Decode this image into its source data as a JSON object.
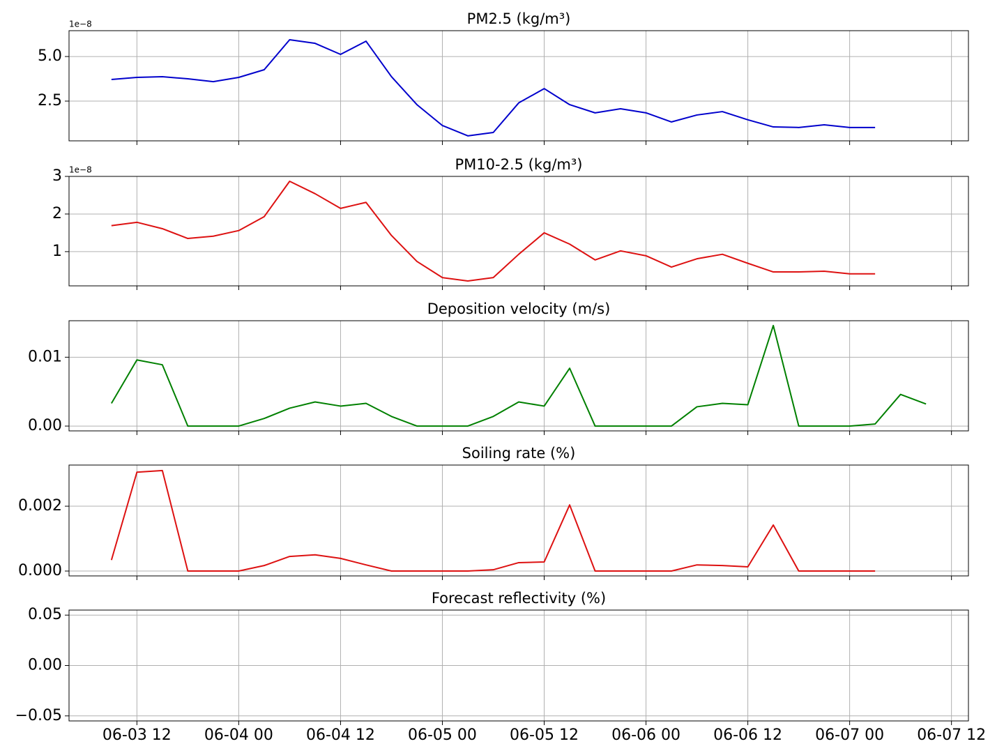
{
  "chart_data": [
    {
      "type": "line",
      "title": "PM2.5 (kg/m³)",
      "offset_text": "1e−8",
      "x": [
        "06-03 09",
        "06-03 12",
        "06-03 15",
        "06-03 18",
        "06-03 21",
        "06-04 00",
        "06-04 03",
        "06-04 06",
        "06-04 09",
        "06-04 12",
        "06-04 15",
        "06-04 18",
        "06-04 21",
        "06-05 00",
        "06-05 03",
        "06-05 06",
        "06-05 09",
        "06-05 12",
        "06-05 15",
        "06-05 18",
        "06-05 21",
        "06-06 00",
        "06-06 03",
        "06-06 06",
        "06-06 09",
        "06-06 12",
        "06-06 15",
        "06-06 18",
        "06-06 21",
        "06-07 00",
        "06-07 03"
      ],
      "series": [
        {
          "color": "#0000cc",
          "values": [
            3.71,
            3.83,
            3.87,
            3.75,
            3.59,
            3.83,
            4.26,
            5.94,
            5.74,
            5.12,
            5.86,
            3.87,
            2.3,
            1.13,
            0.55,
            0.74,
            2.4,
            3.2,
            2.3,
            1.84,
            2.07,
            1.84,
            1.33,
            1.72,
            1.91,
            1.45,
            1.05,
            1.02,
            1.17,
            1.02,
            1.02
          ]
        }
      ],
      "xlim": [
        "06-03 04",
        "06-07 14"
      ],
      "ylim": [
        0.27,
        6.45
      ],
      "yticks": [
        2.5,
        {
          "value": 5,
          "label": "5.0"
        }
      ],
      "grid": true
    },
    {
      "type": "line",
      "title": "PM10-2.5 (kg/m³)",
      "offset_text": "1e−8",
      "x": [
        "06-03 09",
        "06-03 12",
        "06-03 15",
        "06-03 18",
        "06-03 21",
        "06-04 00",
        "06-04 03",
        "06-04 06",
        "06-04 09",
        "06-04 12",
        "06-04 15",
        "06-04 18",
        "06-04 21",
        "06-05 00",
        "06-05 03",
        "06-05 06",
        "06-05 09",
        "06-05 12",
        "06-05 15",
        "06-05 18",
        "06-05 21",
        "06-06 00",
        "06-06 03",
        "06-06 06",
        "06-06 09",
        "06-06 12",
        "06-06 15",
        "06-06 18",
        "06-06 21",
        "06-07 00",
        "06-07 03"
      ],
      "series": [
        {
          "color": "#dd1111",
          "values": [
            1.69,
            1.78,
            1.61,
            1.35,
            1.41,
            1.56,
            1.93,
            2.87,
            2.54,
            2.15,
            2.31,
            1.43,
            0.74,
            0.31,
            0.22,
            0.31,
            0.93,
            1.5,
            1.2,
            0.78,
            1.02,
            0.89,
            0.59,
            0.81,
            0.93,
            0.69,
            0.46,
            0.46,
            0.48,
            0.41,
            0.41
          ]
        }
      ],
      "xlim": [
        "06-03 04",
        "06-07 14"
      ],
      "ylim": [
        0.09,
        3.0
      ],
      "yticks": [
        1,
        2,
        3
      ],
      "grid": true
    },
    {
      "type": "line",
      "title": "Deposition velocity (m/s)",
      "x": [
        "06-03 09",
        "06-03 12",
        "06-03 15",
        "06-03 18",
        "06-03 21",
        "06-04 00",
        "06-04 03",
        "06-04 06",
        "06-04 09",
        "06-04 12",
        "06-04 15",
        "06-04 18",
        "06-04 21",
        "06-05 00",
        "06-05 03",
        "06-05 06",
        "06-05 09",
        "06-05 12",
        "06-05 15",
        "06-05 18",
        "06-05 21",
        "06-06 00",
        "06-06 03",
        "06-06 06",
        "06-06 09",
        "06-06 12",
        "06-06 15",
        "06-06 18",
        "06-06 21",
        "06-07 00",
        "06-07 03",
        "06-07 06",
        "06-07 09"
      ],
      "series": [
        {
          "color": "#008000",
          "values": [
            0.0033,
            0.0096,
            0.0089,
            0,
            0,
            0,
            0.0011,
            0.0026,
            0.0035,
            0.0029,
            0.0033,
            0.0014,
            0,
            0,
            0,
            0.0014,
            0.0035,
            0.0029,
            0.0084,
            0,
            0,
            0,
            0,
            0.0028,
            0.0033,
            0.0031,
            0.0146,
            0,
            0,
            0,
            0.0003,
            0.0046,
            0.0032
          ]
        }
      ],
      "xlim": [
        "06-03 04",
        "06-07 14"
      ],
      "ylim": [
        -0.0007,
        0.0153
      ],
      "yticks": [
        {
          "value": 0,
          "label": "0.00"
        },
        0.01
      ],
      "grid": true
    },
    {
      "type": "line",
      "title": "Soiling rate (%)",
      "x": [
        "06-03 09",
        "06-03 12",
        "06-03 15",
        "06-03 18",
        "06-03 21",
        "06-04 00",
        "06-04 03",
        "06-04 06",
        "06-04 09",
        "06-04 12",
        "06-04 15",
        "06-04 18",
        "06-04 21",
        "06-05 00",
        "06-05 03",
        "06-05 06",
        "06-05 09",
        "06-05 12",
        "06-05 15",
        "06-05 18",
        "06-05 21",
        "06-06 00",
        "06-06 03",
        "06-06 06",
        "06-06 09",
        "06-06 12",
        "06-06 15",
        "06-06 18",
        "06-06 21",
        "06-07 00",
        "06-07 03"
      ],
      "series": [
        {
          "color": "#dd1111",
          "values": [
            0.00034,
            0.00305,
            0.0031,
            0,
            0,
            0,
            0.00017,
            0.00045,
            0.0005,
            0.00039,
            0.00019,
            0,
            0,
            0,
            0,
            4e-05,
            0.00026,
            0.00028,
            0.00204,
            0,
            0,
            0,
            0,
            0.00019,
            0.00017,
            0.00013,
            0.00142,
            0,
            0,
            0,
            0
          ]
        }
      ],
      "xlim": [
        "06-03 04",
        "06-07 14"
      ],
      "ylim": [
        -0.00015,
        0.00327
      ],
      "yticks": [
        {
          "value": 0,
          "label": "0.000"
        },
        0.002
      ],
      "grid": true
    },
    {
      "type": "line",
      "title": "Forecast reflectivity (%)",
      "x": [],
      "series": [],
      "xlim": [
        "06-03 04",
        "06-07 14"
      ],
      "ylim": [
        -0.055,
        0.055
      ],
      "yticks": [
        {
          "value": -0.05,
          "label": "−0.05"
        },
        {
          "value": 0,
          "label": "0.00"
        },
        0.05
      ],
      "xticks": [
        "06-03 12",
        "06-04 00",
        "06-04 12",
        "06-05 00",
        "06-05 12",
        "06-06 00",
        "06-06 12",
        "06-07 00",
        "06-07 12"
      ],
      "grid": true
    }
  ]
}
